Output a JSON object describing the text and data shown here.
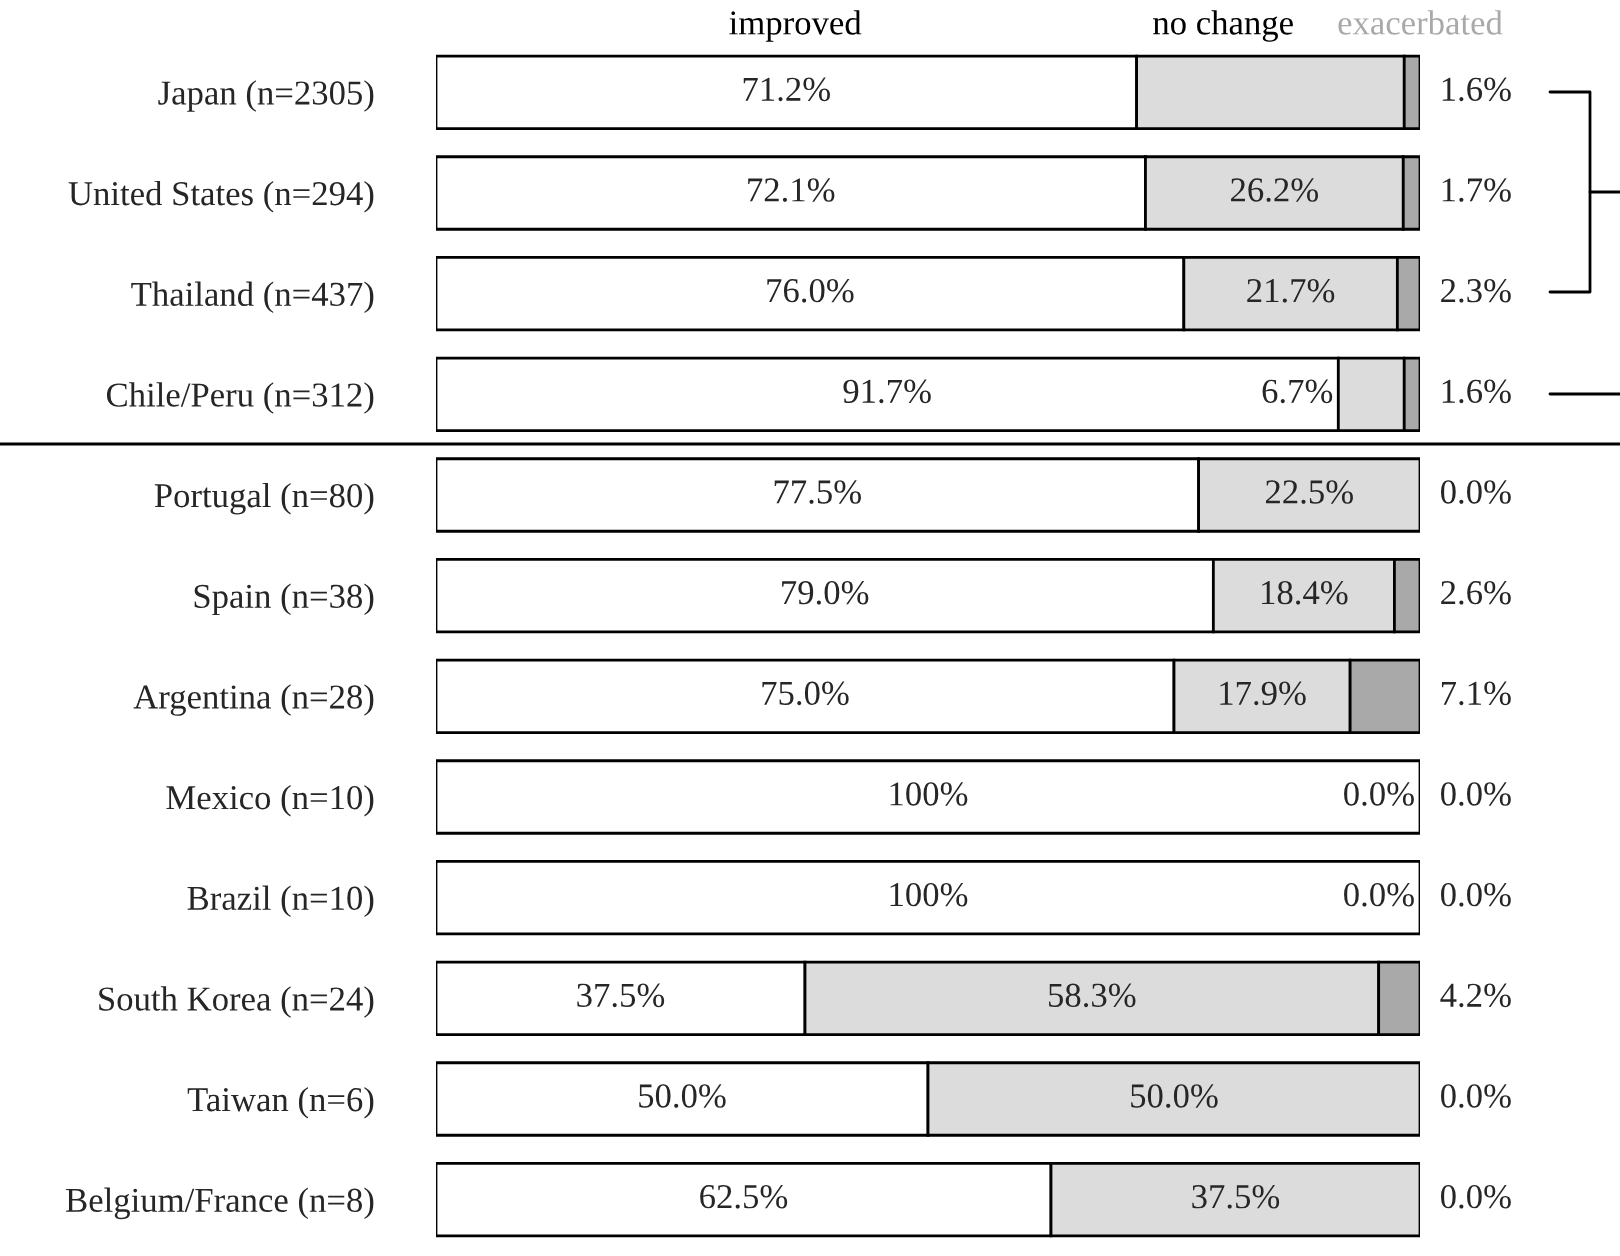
{
  "chart_data": {
    "type": "bar",
    "orientation": "horizontal",
    "stacked": true,
    "legend": "top",
    "categories": [
      "Japan (n=2305)",
      "United States (n=294)",
      "Thailand (n=437)",
      "Chile/Peru (n=312)",
      "Portugal (n=80)",
      "Spain (n=38)",
      "Argentina (n=28)",
      "Mexico (n=10)",
      "Brazil (n=10)",
      "South Korea (n=24)",
      "Taiwan (n=6)",
      "Belgium/France (n=8)"
    ],
    "series": [
      {
        "name": "improved",
        "color": "#ffffff",
        "values": [
          71.2,
          72.1,
          76.0,
          91.7,
          77.5,
          79.0,
          75.0,
          100,
          100,
          37.5,
          50.0,
          62.5
        ],
        "value_labels": [
          "71.2%",
          "72.1%",
          "76.0%",
          "91.7%",
          "77.5%",
          "79.0%",
          "75.0%",
          "100%",
          "100%",
          "37.5%",
          "50.0%",
          "62.5%"
        ]
      },
      {
        "name": "no change",
        "color": "#dcdcdc",
        "values": [
          27.2,
          26.2,
          21.7,
          6.7,
          22.5,
          18.4,
          17.9,
          0.0,
          0.0,
          58.3,
          50.0,
          37.5
        ],
        "value_labels": [
          null,
          "26.2%",
          "21.7%",
          "6.7%",
          "22.5%",
          "18.4%",
          "17.9%",
          "0.0%",
          "0.0%",
          "58.3%",
          "50.0%",
          "37.5%"
        ]
      },
      {
        "name": "exacerbated",
        "color": "#a9a9a9",
        "values": [
          1.6,
          1.7,
          2.3,
          1.6,
          0.0,
          2.6,
          7.1,
          0.0,
          0.0,
          4.2,
          0.0,
          0.0
        ],
        "value_labels": [
          "1.6%",
          "1.7%",
          "2.3%",
          "1.6%",
          "0.0%",
          "2.6%",
          "7.1%",
          "0.0%",
          "0.0%",
          "4.2%",
          "0.0%",
          "0.0%"
        ]
      }
    ]
  }
}
